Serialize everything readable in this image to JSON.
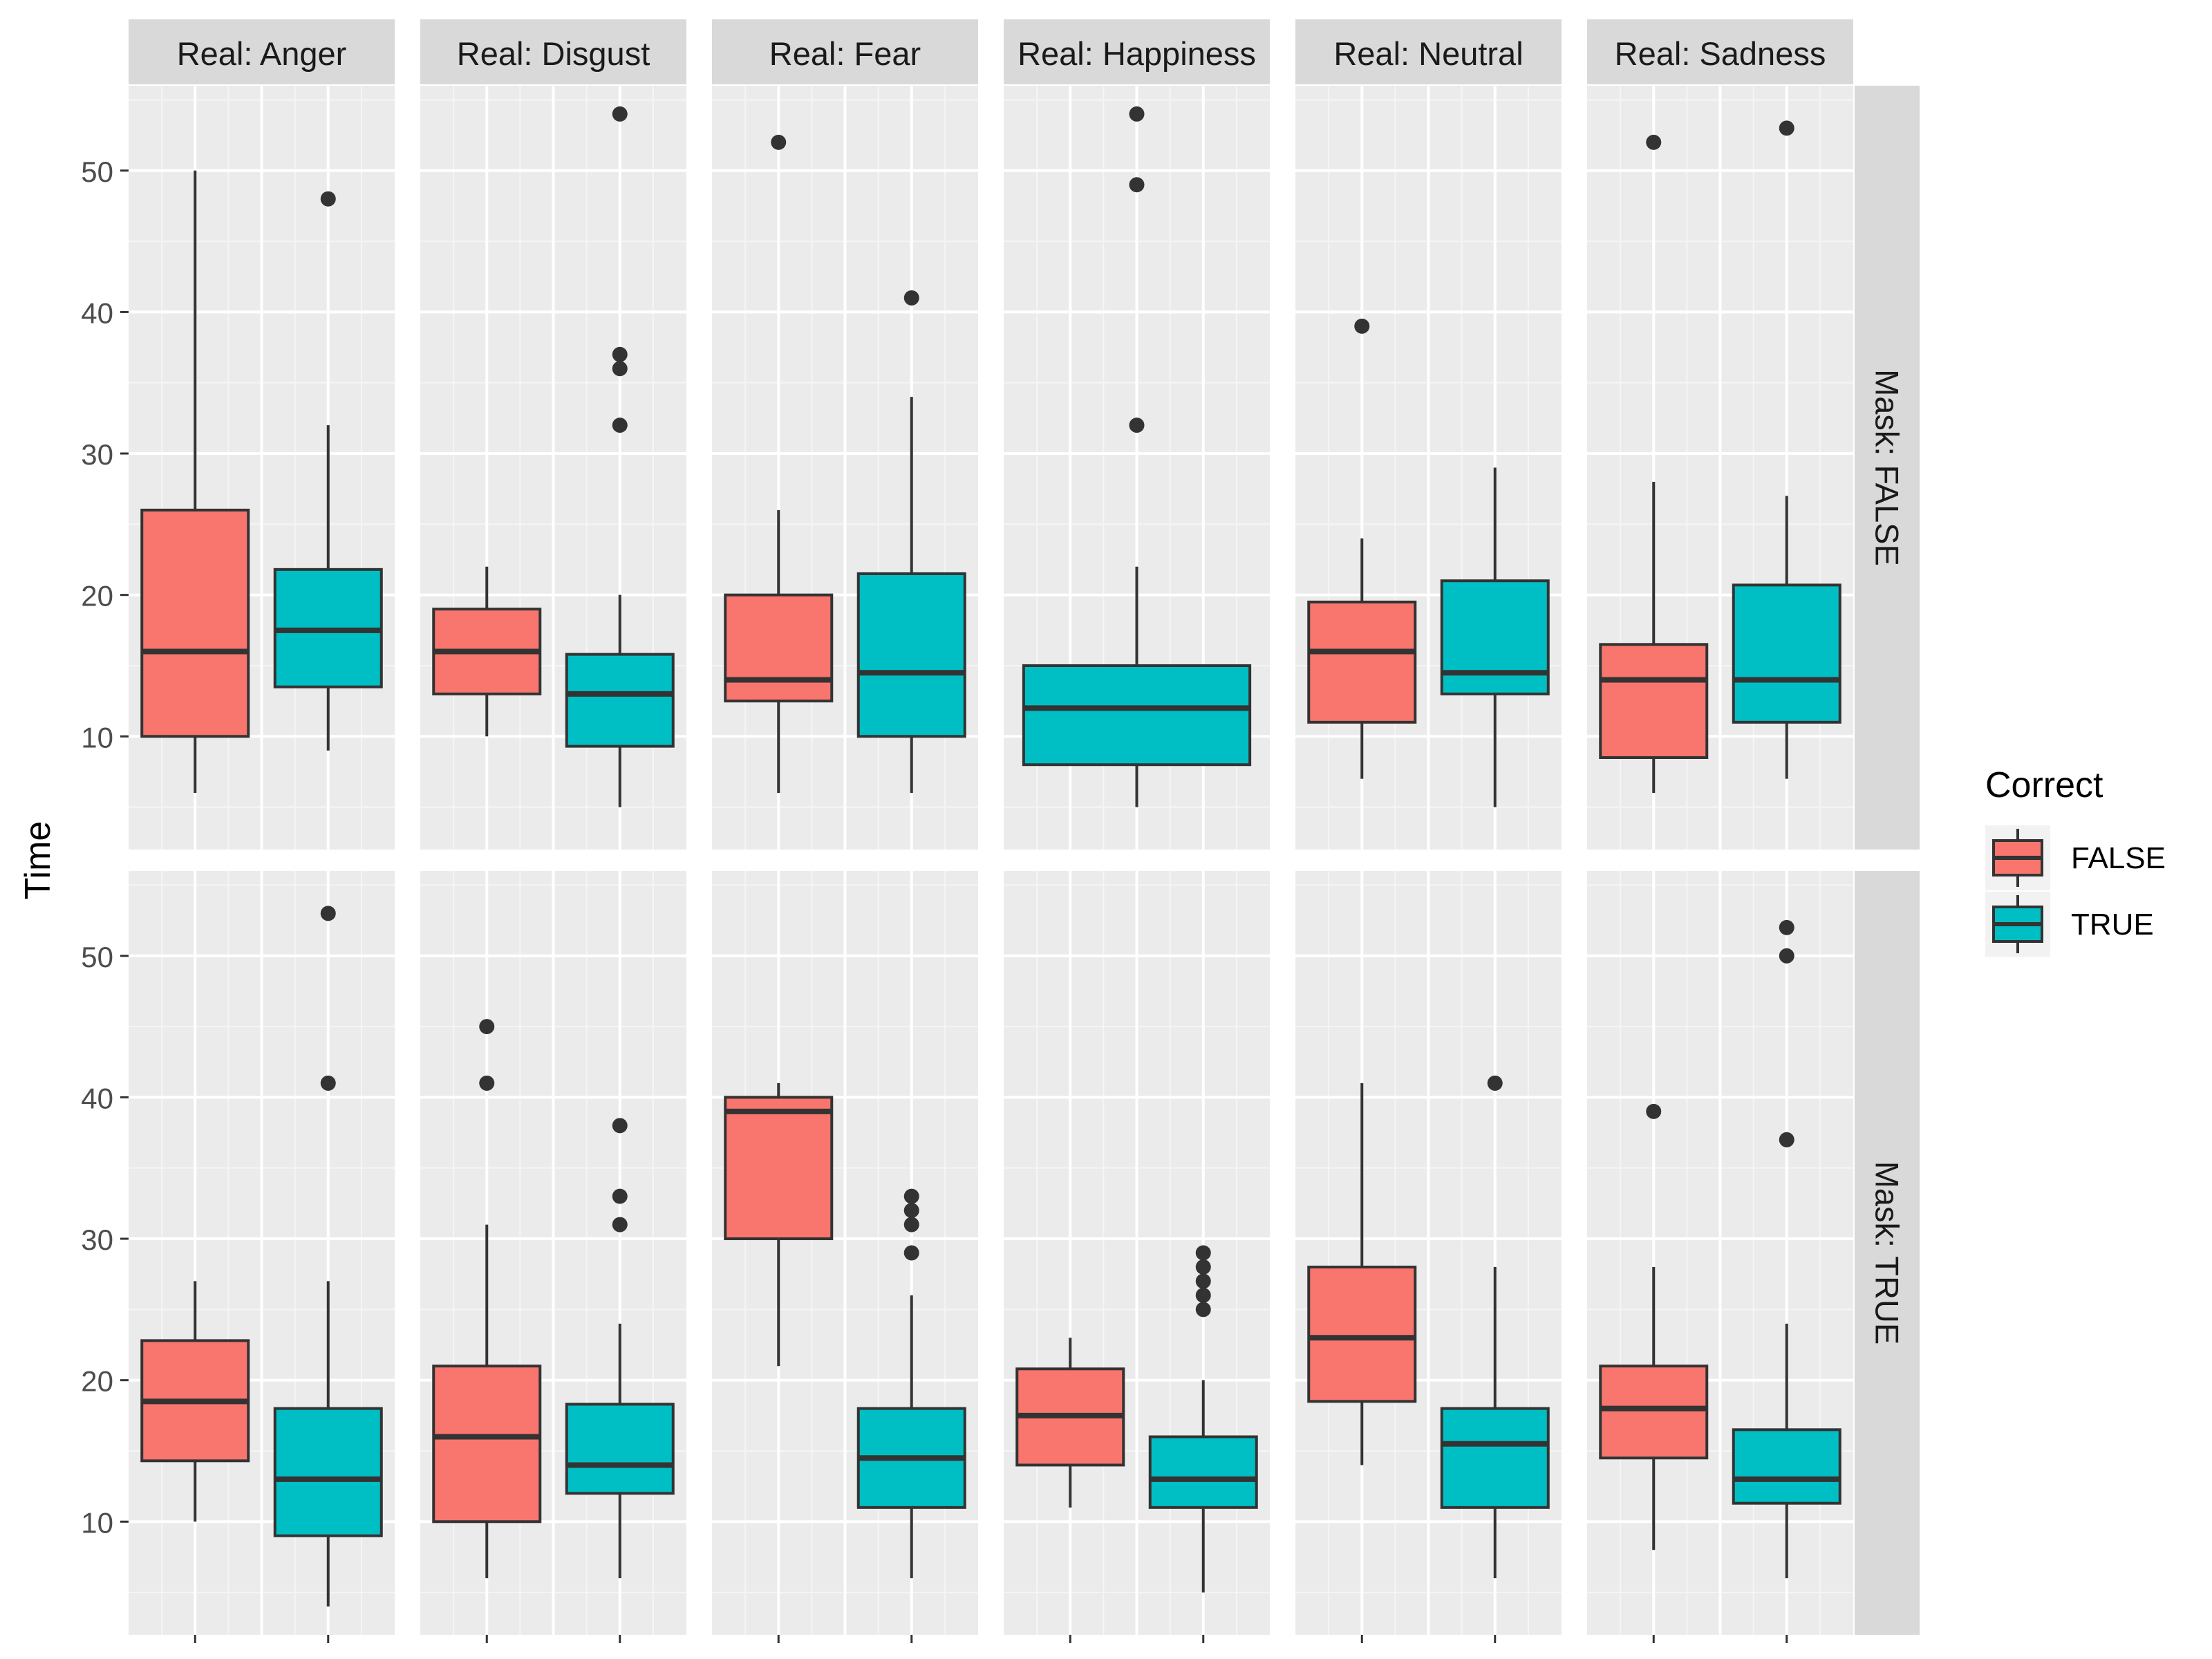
{
  "chart_data": {
    "type": "box",
    "ylabel": "Time",
    "y_ticks": [
      10,
      20,
      30,
      40,
      50
    ],
    "ylim": [
      2,
      56
    ],
    "col_facets": [
      "Real: Anger",
      "Real: Disgust",
      "Real: Fear",
      "Real: Happiness",
      "Real: Neutral",
      "Real: Sadness"
    ],
    "row_facets": [
      "Mask: FALSE",
      "Mask: TRUE"
    ],
    "legend": {
      "title": "Correct",
      "position": "right",
      "items": [
        {
          "label": "FALSE",
          "color": "#F8766D"
        },
        {
          "label": "TRUE",
          "color": "#00BFC4"
        }
      ]
    },
    "panels": [
      {
        "col": 0,
        "row": 0,
        "boxes": [
          {
            "group": "FALSE",
            "lower": 6,
            "q1": 10,
            "median": 16,
            "q3": 26,
            "upper": 50,
            "outliers": []
          },
          {
            "group": "TRUE",
            "lower": 9,
            "q1": 13.5,
            "median": 17.5,
            "q3": 21.8,
            "upper": 32,
            "outliers": [
              48
            ]
          }
        ]
      },
      {
        "col": 1,
        "row": 0,
        "boxes": [
          {
            "group": "FALSE",
            "lower": 10,
            "q1": 13,
            "median": 16,
            "q3": 19,
            "upper": 22,
            "outliers": []
          },
          {
            "group": "TRUE",
            "lower": 5,
            "q1": 9.3,
            "median": 13,
            "q3": 15.8,
            "upper": 20,
            "outliers": [
              54,
              37,
              36,
              32
            ]
          }
        ]
      },
      {
        "col": 2,
        "row": 0,
        "boxes": [
          {
            "group": "FALSE",
            "lower": 6,
            "q1": 12.5,
            "median": 14,
            "q3": 20,
            "upper": 26,
            "outliers": [
              52
            ]
          },
          {
            "group": "TRUE",
            "lower": 6,
            "q1": 10,
            "median": 14.5,
            "q3": 21.5,
            "upper": 34,
            "outliers": [
              41
            ]
          }
        ]
      },
      {
        "col": 3,
        "row": 0,
        "boxes": [
          {
            "group": "TRUE",
            "lower": 5,
            "q1": 8,
            "median": 12,
            "q3": 15,
            "upper": 22,
            "outliers": [
              54,
              49,
              32
            ]
          }
        ]
      },
      {
        "col": 4,
        "row": 0,
        "boxes": [
          {
            "group": "FALSE",
            "lower": 7,
            "q1": 11,
            "median": 16,
            "q3": 19.5,
            "upper": 24,
            "outliers": [
              39
            ]
          },
          {
            "group": "TRUE",
            "lower": 5,
            "q1": 13,
            "median": 14.5,
            "q3": 21,
            "upper": 29,
            "outliers": []
          }
        ]
      },
      {
        "col": 5,
        "row": 0,
        "boxes": [
          {
            "group": "FALSE",
            "lower": 6,
            "q1": 8.5,
            "median": 14,
            "q3": 16.5,
            "upper": 28,
            "outliers": [
              52
            ]
          },
          {
            "group": "TRUE",
            "lower": 7,
            "q1": 11,
            "median": 14,
            "q3": 20.7,
            "upper": 27,
            "outliers": [
              53
            ]
          }
        ]
      },
      {
        "col": 0,
        "row": 1,
        "boxes": [
          {
            "group": "FALSE",
            "lower": 10,
            "q1": 14.3,
            "median": 18.5,
            "q3": 22.8,
            "upper": 27,
            "outliers": []
          },
          {
            "group": "TRUE",
            "lower": 4,
            "q1": 9,
            "median": 13,
            "q3": 18,
            "upper": 27,
            "outliers": [
              53,
              41
            ]
          }
        ]
      },
      {
        "col": 1,
        "row": 1,
        "boxes": [
          {
            "group": "FALSE",
            "lower": 6,
            "q1": 10,
            "median": 16,
            "q3": 21,
            "upper": 31,
            "outliers": [
              45,
              41
            ]
          },
          {
            "group": "TRUE",
            "lower": 6,
            "q1": 12,
            "median": 14,
            "q3": 18.3,
            "upper": 24,
            "outliers": [
              38,
              33,
              31
            ]
          }
        ]
      },
      {
        "col": 2,
        "row": 1,
        "boxes": [
          {
            "group": "FALSE",
            "lower": 21,
            "q1": 30,
            "median": 39,
            "q3": 40,
            "upper": 41,
            "outliers": []
          },
          {
            "group": "TRUE",
            "lower": 6,
            "q1": 11,
            "median": 14.5,
            "q3": 18,
            "upper": 26,
            "outliers": [
              33,
              32,
              31,
              29
            ]
          }
        ]
      },
      {
        "col": 3,
        "row": 1,
        "boxes": [
          {
            "group": "FALSE",
            "lower": 11,
            "q1": 14,
            "median": 17.5,
            "q3": 20.8,
            "upper": 23,
            "outliers": []
          },
          {
            "group": "TRUE",
            "lower": 5,
            "q1": 11,
            "median": 13,
            "q3": 16,
            "upper": 20,
            "outliers": [
              29,
              28,
              27,
              26,
              25
            ]
          }
        ]
      },
      {
        "col": 4,
        "row": 1,
        "boxes": [
          {
            "group": "FALSE",
            "lower": 14,
            "q1": 18.5,
            "median": 23,
            "q3": 28,
            "upper": 41,
            "outliers": []
          },
          {
            "group": "TRUE",
            "lower": 6,
            "q1": 11,
            "median": 15.5,
            "q3": 18,
            "upper": 28,
            "outliers": [
              41
            ]
          }
        ]
      },
      {
        "col": 5,
        "row": 1,
        "boxes": [
          {
            "group": "FALSE",
            "lower": 8,
            "q1": 14.5,
            "median": 18,
            "q3": 21,
            "upper": 28,
            "outliers": [
              39
            ]
          },
          {
            "group": "TRUE",
            "lower": 6,
            "q1": 11.3,
            "median": 13,
            "q3": 16.5,
            "upper": 24,
            "outliers": [
              52,
              50,
              37
            ]
          }
        ]
      }
    ]
  }
}
